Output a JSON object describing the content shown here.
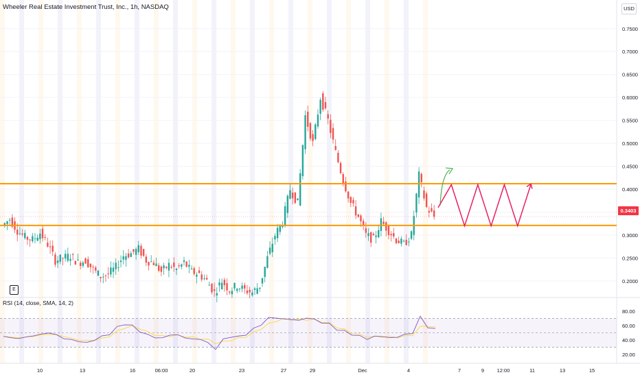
{
  "header": {
    "title": "Wheeler Real Estate Investment Trust, Inc., 1h, NASDAQ",
    "currency": "USD",
    "last_price_label": "0.3403"
  },
  "rsi": {
    "label": "RSI (14, close, SMA, 14, 2)",
    "ticks": [
      {
        "label": "80.00",
        "value": 80
      },
      {
        "label": "60.00",
        "value": 60
      },
      {
        "label": "40.00",
        "value": 40
      },
      {
        "label": "20.00",
        "value": 20
      }
    ],
    "upper_band": 70,
    "middle_band": 50,
    "lower_band": 30
  },
  "earnings_marker": "E",
  "x_axis": {
    "labels": [
      "10",
      "13",
      "16",
      "06:00",
      "20",
      "23",
      "27",
      "29",
      "Dec",
      "4",
      "7",
      "9",
      "12:00",
      "11",
      "13",
      "15"
    ]
  },
  "colors": {
    "up": "#26a69a",
    "down": "#ef5350",
    "level": "#ff9800",
    "projection_up": "#4caf50",
    "projection_zigzag": "#e91e63",
    "rsi_line": "#7e57c2",
    "rsi_ma": "#fdd835",
    "price_tag": "#f23645"
  },
  "chart_data": {
    "type": "candlestick",
    "symbol": "Wheeler Real Estate Investment Trust, Inc.",
    "interval": "1h",
    "exchange": "NASDAQ",
    "currency": "USD",
    "price_axis_ticks": [
      {
        "label": "0.7500",
        "value": 0.75
      },
      {
        "label": "0.7000",
        "value": 0.7
      },
      {
        "label": "0.6500",
        "value": 0.65
      },
      {
        "label": "0.6000",
        "value": 0.6
      },
      {
        "label": "0.5500",
        "value": 0.55
      },
      {
        "label": "0.5000",
        "value": 0.5
      },
      {
        "label": "0.4500",
        "value": 0.45
      },
      {
        "label": "0.4000",
        "value": 0.4
      },
      {
        "label": "0.3500",
        "value": 0.35
      },
      {
        "label": "0.3000",
        "value": 0.3
      },
      {
        "label": "0.2500",
        "value": 0.25
      },
      {
        "label": "0.2000",
        "value": 0.2
      }
    ],
    "ylim": [
      0.17,
      0.79
    ],
    "last_price": 0.3403,
    "horizontal_levels": [
      0.412,
      0.321
    ],
    "price_path": [
      0.32,
      0.335,
      0.31,
      0.295,
      0.29,
      0.305,
      0.28,
      0.245,
      0.25,
      0.255,
      0.24,
      0.245,
      0.225,
      0.21,
      0.215,
      0.23,
      0.255,
      0.26,
      0.27,
      0.245,
      0.24,
      0.22,
      0.235,
      0.225,
      0.24,
      0.22,
      0.215,
      0.2,
      0.175,
      0.2,
      0.18,
      0.19,
      0.18,
      0.175,
      0.19,
      0.25,
      0.3,
      0.33,
      0.4,
      0.37,
      0.56,
      0.5,
      0.6,
      0.55,
      0.48,
      0.42,
      0.37,
      0.34,
      0.3,
      0.29,
      0.33,
      0.31,
      0.29,
      0.28,
      0.3,
      0.43,
      0.36,
      0.34
    ],
    "projection_up_arrow": [
      0.365,
      0.445
    ],
    "projection_zigzag": [
      0.36,
      0.41,
      0.32,
      0.41,
      0.32,
      0.41,
      0.32,
      0.41
    ],
    "rsi_path": [
      45,
      43,
      42,
      44,
      46,
      48,
      50,
      47,
      42,
      40,
      38,
      36,
      40,
      45,
      48,
      58,
      62,
      60,
      52,
      47,
      44,
      42,
      48,
      46,
      44,
      40,
      42,
      35,
      28,
      40,
      45,
      44,
      48,
      55,
      62,
      70,
      72,
      68,
      70,
      66,
      72,
      68,
      65,
      62,
      55,
      52,
      48,
      45,
      42,
      44,
      46,
      42,
      45,
      47,
      50,
      72,
      58,
      55
    ],
    "rsi_ma_path": [
      45,
      44,
      43,
      44,
      45,
      47,
      48,
      47,
      45,
      42,
      40,
      39,
      40,
      42,
      45,
      52,
      57,
      59,
      56,
      51,
      47,
      45,
      46,
      46,
      45,
      43,
      42,
      40,
      36,
      37,
      40,
      42,
      45,
      50,
      56,
      62,
      67,
      69,
      69,
      68,
      69,
      68,
      66,
      63,
      58,
      54,
      50,
      47,
      45,
      44,
      45,
      44,
      44,
      45,
      47,
      58,
      60,
      57
    ]
  }
}
